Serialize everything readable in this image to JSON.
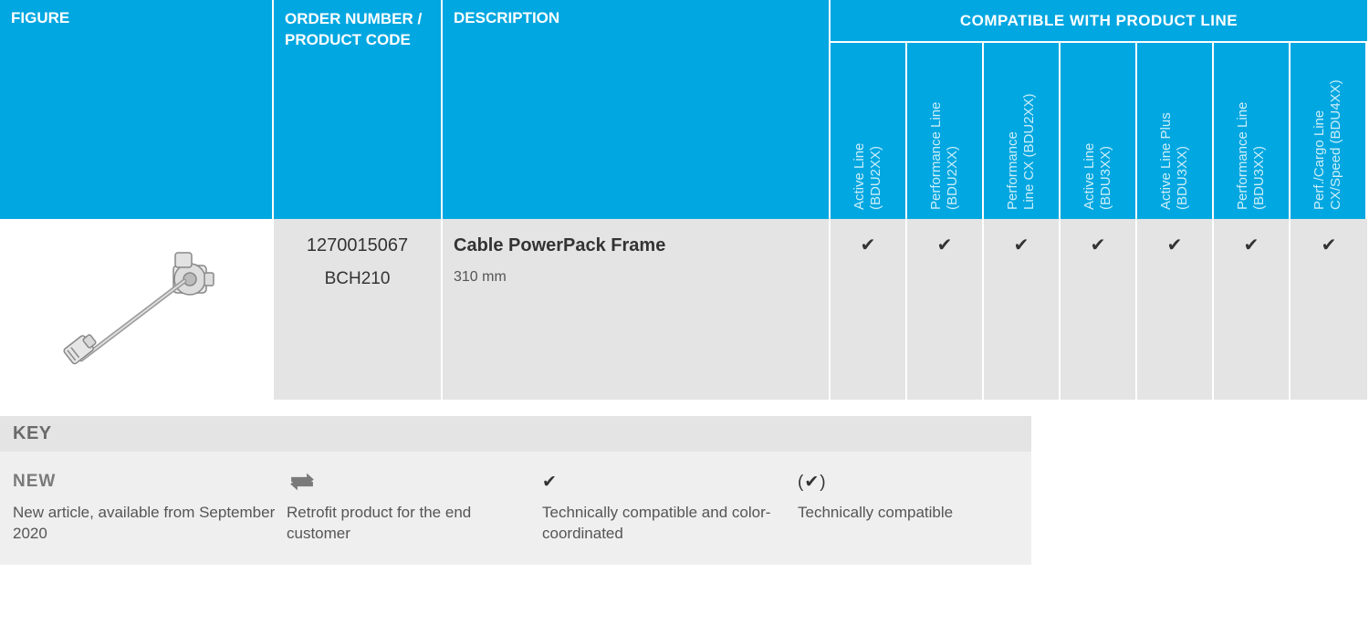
{
  "colors": {
    "header_bg": "#00a7e1",
    "header_text": "#ffffff",
    "vertical_label": "#cdeef9",
    "cell_bg": "#e4e4e4",
    "key_body_bg": "#efefef",
    "text": "#333333",
    "muted": "#6a6a6a",
    "border": "#ffffff"
  },
  "headers": {
    "figure": "FIGURE",
    "order": "ORDER NUMBER / PRODUCT CODE",
    "description": "DESCRIPTION",
    "compat_group": "COMPATIBLE WITH PRODUCT LINE"
  },
  "compat_columns": [
    "Active Line\n(BDU2XX)",
    "Performance Line\n(BDU2XX)",
    "Performance\nLine CX (BDU2XX)",
    "Active Line\n(BDU3XX)",
    "Active Line Plus\n(BDU3XX)",
    "Performance Line\n(BDU3XX)",
    "Perf./Cargo Line\nCX/Speed (BDU4XX)"
  ],
  "row": {
    "order_number": "1270015067",
    "product_code": "BCH210",
    "desc_title": "Cable PowerPack Frame",
    "desc_sub": "310 mm",
    "compat": [
      true,
      true,
      true,
      true,
      true,
      true,
      true
    ]
  },
  "check_glyph": "✔",
  "key": {
    "title": "KEY",
    "items": [
      {
        "symbol_type": "text",
        "symbol": "NEW",
        "text": "New article, available from September 2020"
      },
      {
        "symbol_type": "retrofit-icon",
        "symbol": "",
        "text": "Retrofit product for the end customer"
      },
      {
        "symbol_type": "check",
        "symbol": "✔",
        "text": "Technically compatible and color-coordinated"
      },
      {
        "symbol_type": "check-paren",
        "symbol": "(✔)",
        "text": "Technically compatible"
      }
    ]
  }
}
